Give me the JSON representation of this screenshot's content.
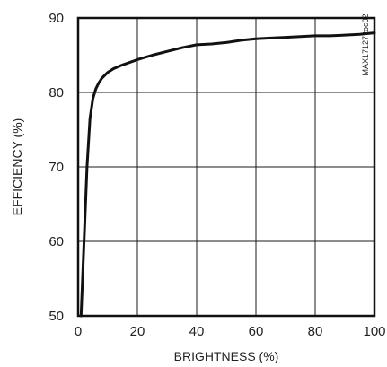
{
  "chart_data": {
    "type": "line",
    "title": "",
    "xlabel": "BRIGHTNESS (%)",
    "ylabel": "EFFICIENCY (%)",
    "side_label": "MAX17127 toc02",
    "xlim": [
      0,
      100
    ],
    "ylim": [
      50,
      90
    ],
    "grid": true,
    "x_ticks": [
      "0",
      "20",
      "40",
      "60",
      "80",
      "100"
    ],
    "y_ticks": [
      "50",
      "60",
      "70",
      "80",
      "90"
    ],
    "series": [
      {
        "color": "#111111",
        "x": [
          1,
          2,
          3,
          4,
          5,
          6,
          7,
          8,
          10,
          12,
          15,
          20,
          25,
          30,
          35,
          40,
          45,
          50,
          55,
          60,
          65,
          70,
          75,
          80,
          85,
          90,
          95,
          100
        ],
        "y": [
          50,
          60,
          70,
          76.5,
          79.2,
          80.5,
          81.3,
          81.9,
          82.7,
          83.2,
          83.7,
          84.4,
          85.0,
          85.5,
          86.0,
          86.4,
          86.5,
          86.7,
          87.0,
          87.2,
          87.3,
          87.4,
          87.5,
          87.6,
          87.6,
          87.7,
          87.8,
          88.0
        ]
      }
    ]
  }
}
